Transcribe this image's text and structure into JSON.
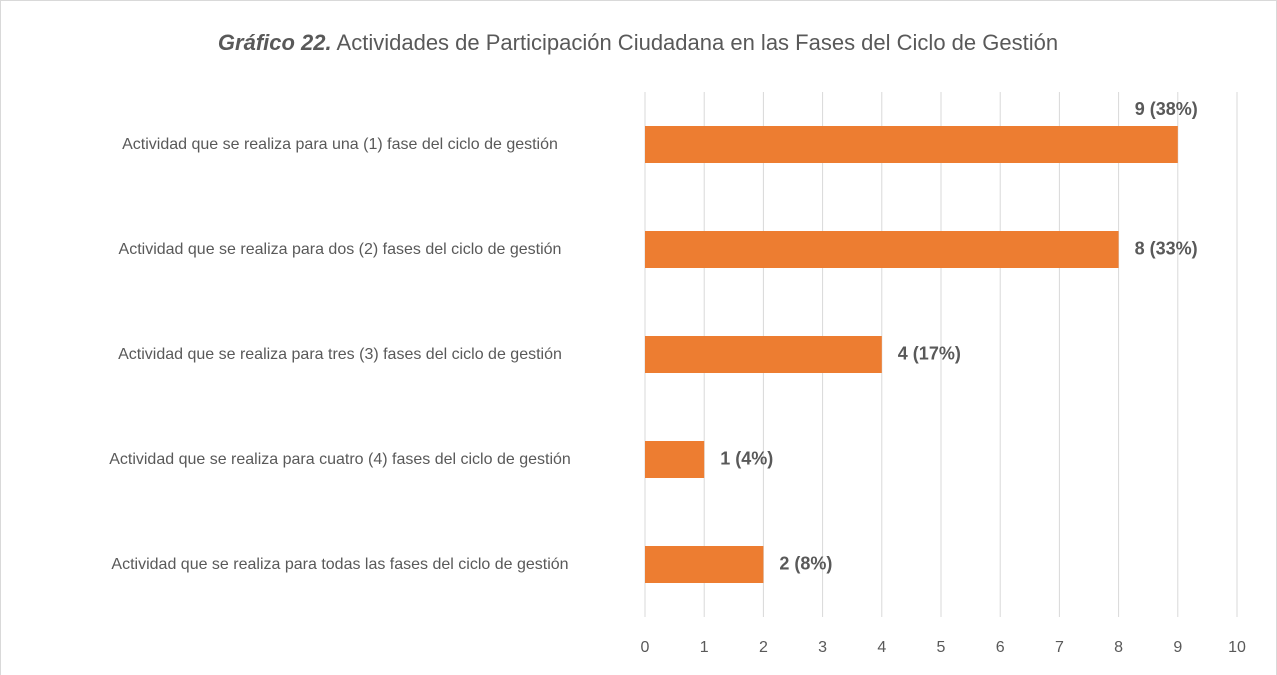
{
  "chart_data": {
    "type": "bar",
    "orientation": "horizontal",
    "title_lead": "Gráfico 22.",
    "title": "Actividades de Participación Ciudadana en las Fases del Ciclo de Gestión",
    "categories": [
      "Actividad que se realiza para una (1) fase del ciclo de gestión",
      "Actividad que se realiza para dos (2) fases del ciclo de gestión",
      "Actividad que se realiza para tres (3) fases del ciclo de gestión",
      "Actividad que se realiza para cuatro (4) fases del ciclo de gestión",
      "Actividad que se realiza para todas las fases del ciclo de gestión"
    ],
    "values": [
      9,
      8,
      4,
      1,
      2
    ],
    "value_labels": [
      "9 (38%)",
      "8 (33%)",
      "4 (17%)",
      "1 (4%)",
      "2 (8%)"
    ],
    "color": "#ed7d31",
    "xlim": [
      0,
      10
    ],
    "xticks": [
      0,
      1,
      2,
      3,
      4,
      5,
      6,
      7,
      8,
      9,
      10
    ],
    "grid": true
  }
}
